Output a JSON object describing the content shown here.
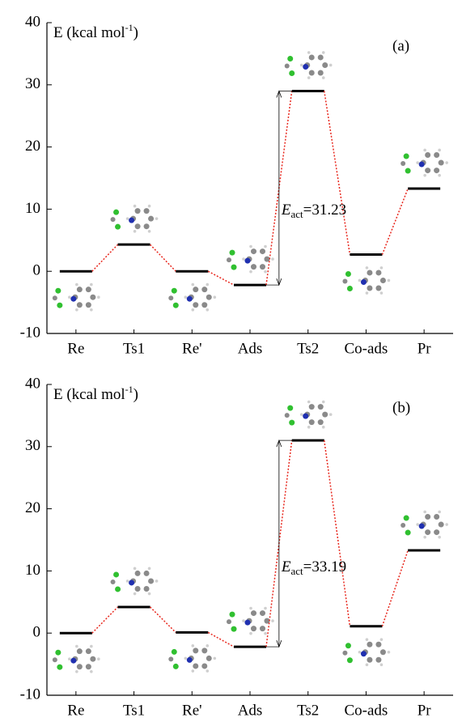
{
  "chart_data": [
    {
      "type": "energy-profile",
      "ylabel": {
        "text": "E (kcal mol",
        "sup": "-1",
        "end": ")"
      },
      "panel_label": "(a)",
      "categories": [
        "Re",
        "Ts1",
        "Re'",
        "Ads",
        "Ts2",
        "Co-ads",
        "Pr"
      ],
      "values": [
        0,
        4.3,
        0,
        -2.2,
        29,
        2.7,
        13.3
      ],
      "color": "#000000",
      "connector_color": "#e8281e",
      "annotation": {
        "symbol": "E",
        "sub": "act",
        "text": "=31.23"
      },
      "ylim": [
        -10,
        40
      ],
      "yticks": [
        -10,
        0,
        10,
        20,
        30,
        40
      ]
    },
    {
      "type": "energy-profile",
      "ylabel": {
        "text": "E (kcal mol",
        "sup": "-1",
        "end": ")"
      },
      "panel_label": "(b)",
      "categories": [
        "Re",
        "Ts1",
        "Re'",
        "Ads",
        "Ts2",
        "Co-ads",
        "Pr"
      ],
      "values": [
        0,
        4.2,
        0.1,
        -2.2,
        31,
        1.1,
        13.3
      ],
      "color": "#000000",
      "connector_color": "#e8281e",
      "annotation": {
        "symbol": "E",
        "sub": "act",
        "text": "=33.19"
      },
      "ylim": [
        -10,
        40
      ],
      "yticks": [
        -10,
        0,
        10,
        20,
        30,
        40
      ]
    }
  ]
}
